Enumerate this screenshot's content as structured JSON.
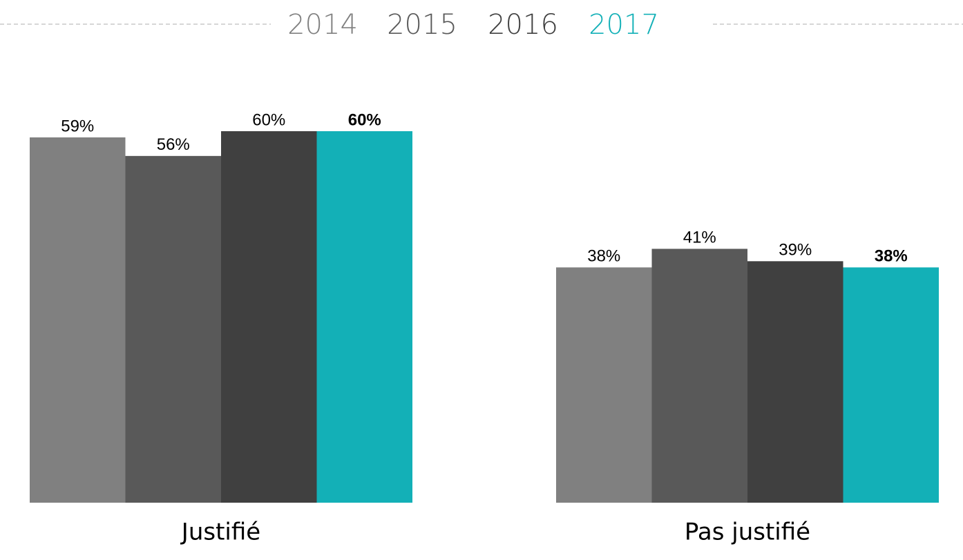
{
  "chart_data": {
    "type": "bar",
    "categories": [
      "Justifié",
      "Pas justifié"
    ],
    "series": [
      {
        "name": "2014",
        "color": "#808080",
        "values": [
          59,
          38
        ],
        "value_labels": [
          "59%",
          "38%"
        ]
      },
      {
        "name": "2015",
        "color": "#595959",
        "values": [
          56,
          41
        ],
        "value_labels": [
          "56%",
          "41%"
        ]
      },
      {
        "name": "2016",
        "color": "#404040",
        "values": [
          60,
          39
        ],
        "value_labels": [
          "60%",
          "39%"
        ]
      },
      {
        "name": "2017",
        "color": "#13b0b7",
        "values": [
          60,
          38
        ],
        "value_labels": [
          "60%",
          "38%"
        ]
      }
    ],
    "ylim": [
      0,
      60
    ],
    "legend": "top"
  }
}
